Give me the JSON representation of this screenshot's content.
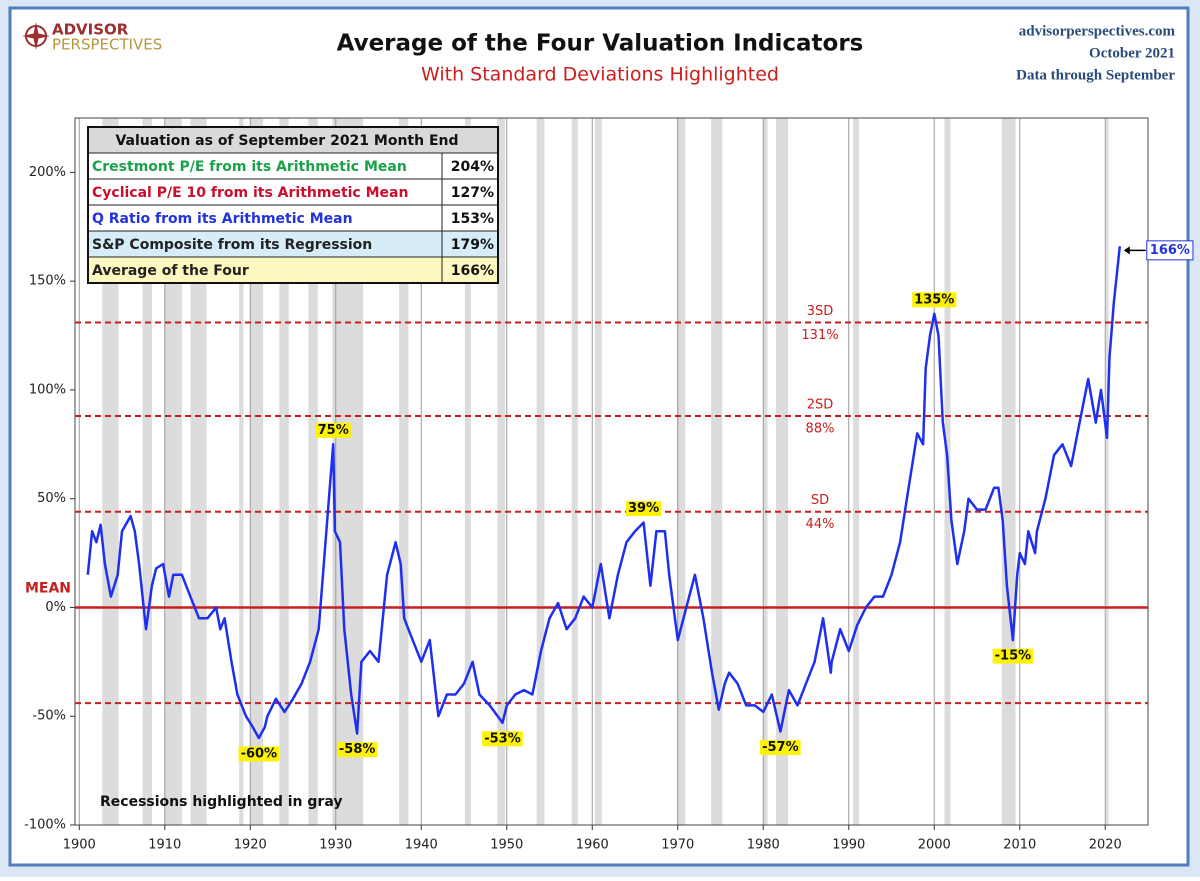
{
  "header": {
    "logo_top": "ADVISOR",
    "logo_bottom": "PERSPECTIVES",
    "site": "advisorperspectives.com",
    "date": "October 2021",
    "data_note": "Data through September"
  },
  "chart_data": {
    "type": "line",
    "title": "Average of the Four Valuation Indicators",
    "subtitle": "With Standard Deviations Highlighted",
    "note": "Recessions highlighted in gray",
    "xlim": [
      1899.5,
      2025
    ],
    "xticks": [
      1900,
      1910,
      1920,
      1930,
      1940,
      1950,
      1960,
      1970,
      1980,
      1990,
      2000,
      2010,
      2020
    ],
    "ylim": [
      -100,
      225
    ],
    "yticks": [
      {
        "value": -100,
        "label": "-100%"
      },
      {
        "value": -50,
        "label": "-50%"
      },
      {
        "value": 0,
        "label": "0%"
      },
      {
        "value": 50,
        "label": "50%"
      },
      {
        "value": 100,
        "label": "100%"
      },
      {
        "value": 150,
        "label": "150%"
      },
      {
        "value": 200,
        "label": "200%"
      }
    ],
    "grid": true,
    "recessions": [
      [
        1902.7,
        1904.6
      ],
      [
        1907.4,
        1908.5
      ],
      [
        1910.0,
        1912.0
      ],
      [
        1913.0,
        1914.9
      ],
      [
        1918.7,
        1919.2
      ],
      [
        1920.0,
        1921.5
      ],
      [
        1923.4,
        1924.5
      ],
      [
        1926.8,
        1927.9
      ],
      [
        1929.6,
        1933.2
      ],
      [
        1937.4,
        1938.5
      ],
      [
        1945.1,
        1945.8
      ],
      [
        1948.9,
        1949.8
      ],
      [
        1953.5,
        1954.4
      ],
      [
        1957.6,
        1958.3
      ],
      [
        1960.3,
        1961.1
      ],
      [
        1969.9,
        1970.9
      ],
      [
        1973.9,
        1975.2
      ],
      [
        1980.0,
        1980.5
      ],
      [
        1981.5,
        1982.9
      ],
      [
        1990.5,
        1991.2
      ],
      [
        2001.2,
        2001.9
      ],
      [
        2007.9,
        2009.5
      ],
      [
        2020.1,
        2020.4
      ]
    ],
    "reference_lines": [
      {
        "value": 0,
        "label": "MEAN"
      },
      {
        "value": 44,
        "label": "SD",
        "value_label": "44%"
      },
      {
        "value": 88,
        "label": "2SD",
        "value_label": "88%"
      },
      {
        "value": 131,
        "label": "3SD",
        "value_label": "131%"
      },
      {
        "value": -44
      }
    ],
    "series": [
      {
        "color": "#1f2ff0",
        "x": [
          1901,
          1901.5,
          1902,
          1902.5,
          1903,
          1903.7,
          1904.5,
          1905,
          1906,
          1906.5,
          1907,
          1907.8,
          1908.5,
          1909,
          1909.8,
          1910.5,
          1911,
          1912,
          1913,
          1914,
          1915,
          1916,
          1916.5,
          1917,
          1917.8,
          1918.5,
          1919,
          1919.5,
          1920.3,
          1921,
          1921.7,
          1922,
          1923,
          1924,
          1925,
          1926,
          1927,
          1928,
          1928.8,
          1929.7,
          1929.9,
          1930.5,
          1931,
          1931.8,
          1932.5,
          1933,
          1934,
          1935,
          1936,
          1937,
          1937.6,
          1938,
          1938.5,
          1939,
          1940,
          1941,
          1942,
          1943,
          1944,
          1945,
          1946,
          1946.8,
          1948,
          1949.5,
          1950,
          1951,
          1952,
          1953,
          1954,
          1955,
          1956,
          1957,
          1958,
          1959,
          1960,
          1961,
          1962,
          1963,
          1964,
          1965,
          1966,
          1966.8,
          1967.5,
          1968.5,
          1969,
          1970,
          1971,
          1972,
          1973,
          1974,
          1974.8,
          1975.5,
          1976,
          1977,
          1978,
          1979,
          1980,
          1981,
          1982,
          1983,
          1984,
          1985,
          1986,
          1987,
          1987.9,
          1988,
          1989,
          1990,
          1991,
          1992,
          1993,
          1994,
          1995,
          1996,
          1997,
          1998,
          1998.7,
          1999,
          1999.5,
          2000,
          2000.5,
          2001,
          2001.5,
          2002,
          2002.7,
          2003.5,
          2004,
          2005,
          2006,
          2007,
          2007.5,
          2008,
          2008.5,
          2009.2,
          2009.7,
          2010,
          2010.6,
          2011,
          2011.8,
          2012,
          2013,
          2014,
          2015,
          2016,
          2017,
          2018,
          2018.9,
          2019.5,
          2020.2,
          2020.5,
          2021,
          2021.7
        ],
        "values": [
          15,
          35,
          30,
          38,
          20,
          5,
          15,
          35,
          42,
          35,
          20,
          -10,
          10,
          18,
          20,
          5,
          15,
          15,
          5,
          -5,
          -5,
          0,
          -10,
          -5,
          -25,
          -40,
          -45,
          -50,
          -55,
          -60,
          -55,
          -50,
          -42,
          -48,
          -42,
          -35,
          -25,
          -10,
          30,
          75,
          35,
          30,
          -10,
          -40,
          -58,
          -25,
          -20,
          -25,
          15,
          30,
          20,
          -5,
          -10,
          -15,
          -25,
          -15,
          -50,
          -40,
          -40,
          -35,
          -25,
          -40,
          -45,
          -53,
          -45,
          -40,
          -38,
          -40,
          -20,
          -5,
          2,
          -10,
          -5,
          5,
          0,
          20,
          -5,
          15,
          30,
          35,
          39,
          10,
          35,
          35,
          15,
          -15,
          0,
          15,
          -5,
          -30,
          -47,
          -35,
          -30,
          -35,
          -45,
          -45,
          -48,
          -40,
          -57,
          -38,
          -45,
          -35,
          -25,
          -5,
          -30,
          -25,
          -10,
          -20,
          -8,
          0,
          5,
          5,
          15,
          30,
          55,
          80,
          75,
          110,
          125,
          135,
          125,
          85,
          70,
          40,
          20,
          35,
          50,
          45,
          45,
          55,
          55,
          40,
          10,
          -15,
          15,
          25,
          20,
          35,
          25,
          35,
          50,
          70,
          75,
          65,
          85,
          105,
          85,
          100,
          78,
          115,
          140,
          166
        ]
      }
    ],
    "annotations": [
      {
        "x": 1929.7,
        "y": 75,
        "label": "75%"
      },
      {
        "x": 1921,
        "y": -60,
        "label": "-60%"
      },
      {
        "x": 1932.5,
        "y": -58,
        "label": "-58%"
      },
      {
        "x": 1949.5,
        "y": -53,
        "label": "-53%"
      },
      {
        "x": 1966,
        "y": 39,
        "label": "39%"
      },
      {
        "x": 1982,
        "y": -57,
        "label": "-57%"
      },
      {
        "x": 2000,
        "y": 135,
        "label": "135%"
      },
      {
        "x": 2009.2,
        "y": -15,
        "label": "-15%"
      },
      {
        "x": 2021.7,
        "y": 166,
        "label": "166%"
      }
    ],
    "table": {
      "title": "Valuation as of September 2021 Month End",
      "rows": [
        {
          "label": "Crestmont P/E from its Arithmetic Mean",
          "value": "204%",
          "color": "#1aa24a",
          "bg": "#ffffff"
        },
        {
          "label": "Cyclical P/E 10 from its Arithmetic Mean",
          "value": "127%",
          "color": "#c8102e",
          "bg": "#ffffff"
        },
        {
          "label": "Q Ratio from its Arithmetic Mean",
          "value": "153%",
          "color": "#2233dd",
          "bg": "#ffffff"
        },
        {
          "label": "S&P Composite from its Regression",
          "value": "179%",
          "color": "#222222",
          "bg": "#d6ecf7"
        },
        {
          "label": "Average of the Four",
          "value": "166%",
          "color": "#222222",
          "bg": "#fdf8c0"
        }
      ]
    }
  }
}
